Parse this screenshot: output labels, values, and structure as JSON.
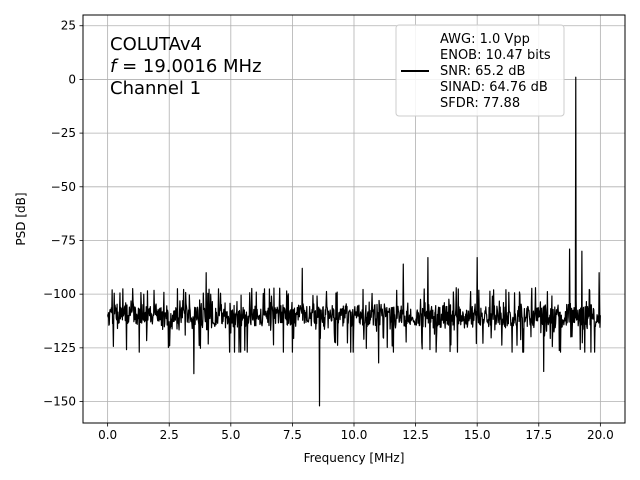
{
  "chart_data": {
    "type": "line",
    "title": "",
    "xlabel": "Frequency [MHz]",
    "ylabel": "PSD [dB]",
    "xlim": [
      -1.0,
      21.0
    ],
    "ylim": [
      -160,
      30
    ],
    "xticks": [
      0.0,
      2.5,
      5.0,
      7.5,
      10.0,
      12.5,
      15.0,
      17.5,
      20.0
    ],
    "xtick_labels": [
      "0.0",
      "2.5",
      "5.0",
      "7.5",
      "10.0",
      "12.5",
      "15.0",
      "17.5",
      "20.0"
    ],
    "yticks": [
      25,
      0,
      -25,
      -50,
      -75,
      -100,
      -125,
      -150
    ],
    "ytick_labels": [
      "25",
      "0",
      "−25",
      "−50",
      "−75",
      "−100",
      "−125",
      "−150"
    ],
    "grid": true,
    "line_color": "#000000",
    "noise_floor_db": -110,
    "noise_range_db": [
      -125,
      -97
    ],
    "x_range_mhz": [
      0.0,
      20.0
    ],
    "peaks": [
      {
        "x": 19.0016,
        "y": 1
      },
      {
        "x": 8.6,
        "y": -152
      },
      {
        "x": 4.0,
        "y": -90
      },
      {
        "x": 7.9,
        "y": -88
      },
      {
        "x": 12.0,
        "y": -86
      },
      {
        "x": 13.0,
        "y": -83
      },
      {
        "x": 15.0,
        "y": -83
      },
      {
        "x": 18.75,
        "y": -79
      },
      {
        "x": 19.25,
        "y": -80
      },
      {
        "x": 19.95,
        "y": -90
      },
      {
        "x": 3.5,
        "y": -137
      },
      {
        "x": 17.7,
        "y": -136
      },
      {
        "x": 11.0,
        "y": -132
      }
    ],
    "annotations": {
      "chip": "COLUTAv4",
      "freq_symbol": "f",
      "freq_value": " = 19.0016 MHz",
      "channel": "Channel 1"
    },
    "legend": {
      "placement": "top-right",
      "lines": [
        "AWG: 1.0 Vpp",
        "ENOB: 10.47 bits",
        "SNR: 65.2 dB",
        "SINAD: 64.76 dB",
        "SFDR: 77.88"
      ]
    }
  }
}
